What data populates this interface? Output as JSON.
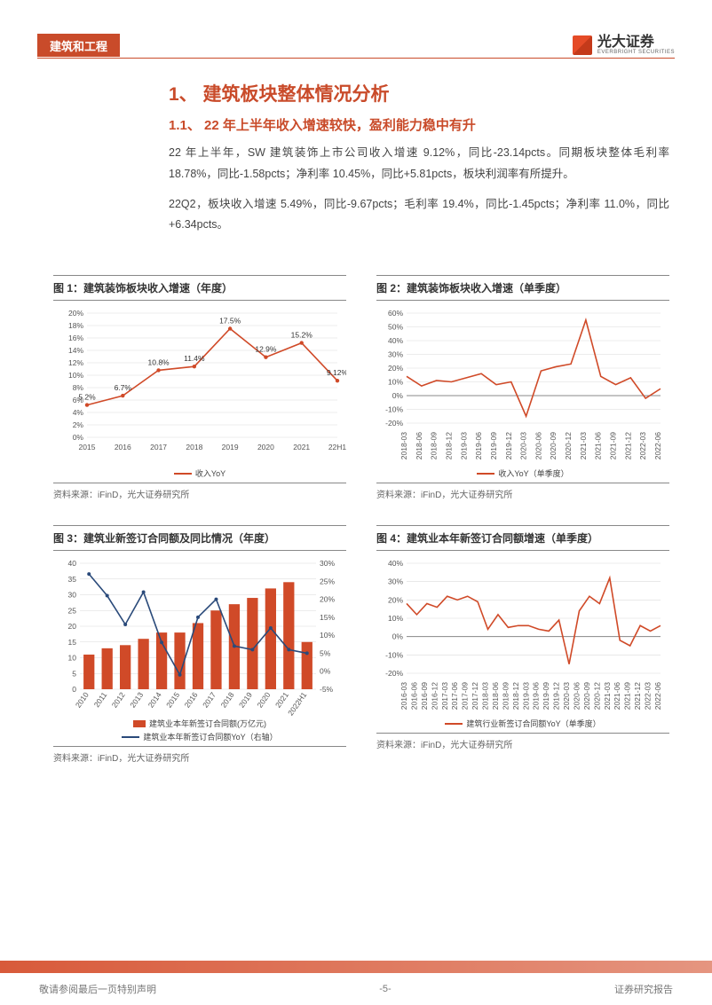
{
  "header": {
    "category": "建筑和工程",
    "logo_text": "光大证券",
    "logo_sub": "EVERBRIGHT SECURITIES"
  },
  "section": {
    "h1": "1、 建筑板块整体情况分析",
    "h2": "1.1、 22 年上半年收入增速较快，盈利能力稳中有升",
    "p1": "22 年上半年，SW 建筑装饰上市公司收入增速 9.12%，同比-23.14pcts。同期板块整体毛利率 18.78%，同比-1.58pcts；净利率 10.45%，同比+5.81pcts，板块利润率有所提升。",
    "p2": "22Q2，板块收入增速 5.49%，同比-9.67pcts；毛利率 19.4%，同比-1.45pcts；净利率 11.0%，同比+6.34pcts。"
  },
  "charts": {
    "source_text": "资料来源：iFinD，光大证券研究所",
    "c1": {
      "title": "图 1：建筑装饰板块收入增速（年度）",
      "type": "line",
      "x": [
        "2015",
        "2016",
        "2017",
        "2018",
        "2019",
        "2020",
        "2021",
        "22H1"
      ],
      "y": [
        5.2,
        6.7,
        10.8,
        11.4,
        17.5,
        12.9,
        15.2,
        9.12
      ],
      "point_labels": [
        "5.2%",
        "6.7%",
        "10.8%",
        "11.4%",
        "17.5%",
        "12.9%",
        "15.2%",
        "9.12%"
      ],
      "y_ticks": [
        0,
        2,
        4,
        6,
        8,
        10,
        12,
        14,
        16,
        18,
        20
      ],
      "y_tick_labels": [
        "0%",
        "2%",
        "4%",
        "6%",
        "8%",
        "10%",
        "12%",
        "14%",
        "16%",
        "18%",
        "20%"
      ],
      "ylim": [
        0,
        20
      ],
      "line_color": "#d04a28",
      "marker_color": "#d04a28",
      "grid_color": "#d9d9d9",
      "legend": [
        {
          "label": "收入YoY",
          "type": "line",
          "color": "#d04a28"
        }
      ]
    },
    "c2": {
      "title": "图 2：建筑装饰板块收入增速（单季度）",
      "type": "line",
      "x": [
        "2018-03",
        "2018-06",
        "2018-09",
        "2018-12",
        "2019-03",
        "2019-06",
        "2019-09",
        "2019-12",
        "2020-03",
        "2020-06",
        "2020-09",
        "2020-12",
        "2021-03",
        "2021-06",
        "2021-09",
        "2021-12",
        "2022-03",
        "2022-06"
      ],
      "y": [
        14,
        7,
        11,
        10,
        13,
        16,
        8,
        10,
        -15,
        18,
        21,
        23,
        55,
        14,
        8,
        13,
        -2,
        5
      ],
      "y_ticks": [
        -20,
        -10,
        0,
        10,
        20,
        30,
        40,
        50,
        60
      ],
      "y_tick_labels": [
        "-20%",
        "-10%",
        "0%",
        "10%",
        "20%",
        "30%",
        "40%",
        "50%",
        "60%"
      ],
      "ylim": [
        -20,
        60
      ],
      "line_color": "#d04a28",
      "grid_color": "#d9d9d9",
      "legend": [
        {
          "label": "收入YoY（单季度）",
          "type": "line",
          "color": "#d04a28"
        }
      ]
    },
    "c3": {
      "title": "图 3：建筑业新签订合同额及同比情况（年度）",
      "type": "bar+line",
      "x": [
        "2010",
        "2011",
        "2012",
        "2013",
        "2014",
        "2015",
        "2016",
        "2017",
        "2018",
        "2019",
        "2020",
        "2021",
        "2022H1"
      ],
      "bars": [
        11,
        13,
        14,
        16,
        18,
        18,
        21,
        25,
        27,
        29,
        32,
        34,
        15
      ],
      "line": [
        27,
        21,
        13,
        22,
        8,
        -1,
        15,
        20,
        7,
        6,
        12,
        6,
        5
      ],
      "y_ticks_left": [
        0,
        5,
        10,
        15,
        20,
        25,
        30,
        35,
        40
      ],
      "y_ticks_right": [
        -5,
        0,
        5,
        10,
        15,
        20,
        25,
        30
      ],
      "y_tick_labels_right": [
        "-5%",
        "0%",
        "5%",
        "10%",
        "15%",
        "20%",
        "25%",
        "30%"
      ],
      "ylim_left": [
        0,
        40
      ],
      "ylim_right": [
        -5,
        30
      ],
      "bar_color": "#d04a28",
      "line_color": "#2a4a7a",
      "grid_color": "#d9d9d9",
      "legend": [
        {
          "label": "建筑业本年新签订合同额(万亿元)",
          "type": "bar",
          "color": "#d04a28"
        },
        {
          "label": "建筑业本年新签订合同额YoY（右轴）",
          "type": "line",
          "color": "#2a4a7a"
        }
      ]
    },
    "c4": {
      "title": "图 4：建筑业本年新签订合同额增速（单季度）",
      "type": "line",
      "x": [
        "2016-03",
        "2016-06",
        "2016-09",
        "2016-12",
        "2017-03",
        "2017-06",
        "2017-09",
        "2017-12",
        "2018-03",
        "2018-06",
        "2018-09",
        "2018-12",
        "2019-03",
        "2019-06",
        "2019-09",
        "2019-12",
        "2020-03",
        "2020-06",
        "2020-09",
        "2020-12",
        "2021-03",
        "2021-06",
        "2021-09",
        "2021-12",
        "2022-03",
        "2022-06"
      ],
      "y": [
        18,
        12,
        18,
        16,
        22,
        20,
        22,
        19,
        4,
        12,
        5,
        6,
        6,
        4,
        3,
        9,
        -15,
        14,
        22,
        18,
        32,
        -2,
        -5,
        6,
        3,
        6
      ],
      "y_ticks": [
        -20,
        -10,
        0,
        10,
        20,
        30,
        40
      ],
      "y_tick_labels": [
        "-20%",
        "-10%",
        "0%",
        "10%",
        "20%",
        "30%",
        "40%"
      ],
      "ylim": [
        -20,
        40
      ],
      "line_color": "#d04a28",
      "grid_color": "#d9d9d9",
      "legend": [
        {
          "label": "建筑行业新签订合同额YoY（单季度）",
          "type": "line",
          "color": "#d04a28"
        }
      ]
    }
  },
  "footer": {
    "left": "敬请参阅最后一页特别声明",
    "center": "-5-",
    "right": "证券研究报告"
  },
  "colors": {
    "brand": "#c94b2a",
    "text": "#333333",
    "grid": "#d9d9d9"
  }
}
